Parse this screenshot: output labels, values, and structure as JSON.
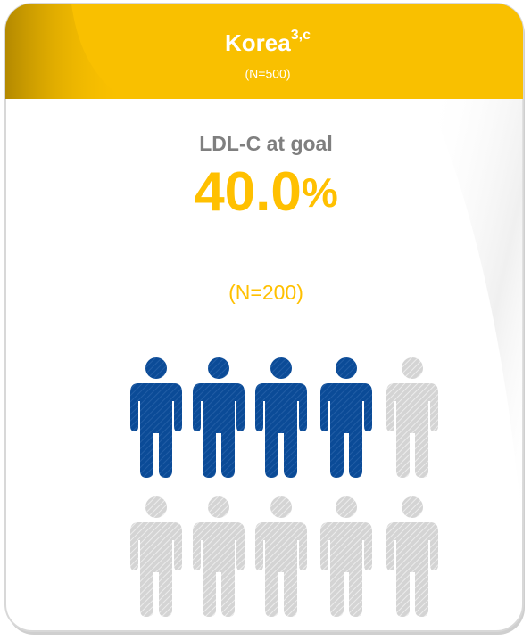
{
  "header": {
    "title": "Korea",
    "superscript": "3,c",
    "subtitle": "(N=500)"
  },
  "stat": {
    "label": "LDL-C at goal",
    "value": 40.0,
    "value_label": "40.0",
    "unit": "%",
    "count": "(N=200)"
  }
}
